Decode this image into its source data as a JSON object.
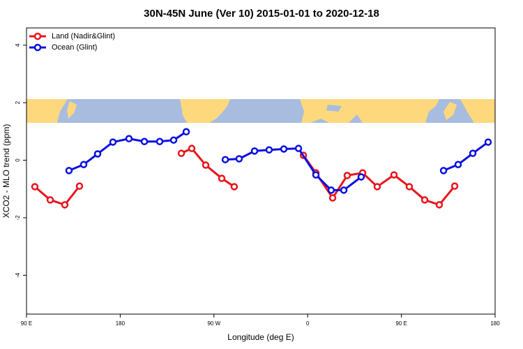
{
  "chart_data": {
    "type": "line",
    "title": "30N-45N June (Ver 10)   2015-01-01 to 2020-12-18",
    "x_label": "Longitude (deg E)",
    "y_label": "XCO2 - MLO trend (ppm)",
    "xlim": [
      90,
      540
    ],
    "xticks": [
      {
        "value": 90,
        "label": "90 E"
      },
      180,
      {
        "value": 270,
        "label": "90 W"
      },
      {
        "value": 360,
        "label": "0"
      },
      {
        "value": 450,
        "label": "90 E"
      },
      {
        "value": 540,
        "label": "180"
      }
    ],
    "ylim": [
      -5.35,
      4.6
    ],
    "yticks": [
      -4,
      -2,
      0,
      2,
      4
    ],
    "legend": "top-left",
    "series": [
      {
        "name": "Land (Nadir&Glint)",
        "color": "#e8141c",
        "x": [
          98.0,
          112.8,
          126.8,
          140.9,
          null,
          238.7,
          248.7,
          262.1,
          277.5,
          289.5,
          null,
          355.9,
          367.9,
          384.0,
          398.0,
          412.8,
          426.8,
          442.9,
          457.6,
          472.4,
          486.4,
          501.2
        ],
        "values": [
          -0.92,
          -1.38,
          -1.55,
          -0.9,
          null,
          0.24,
          0.41,
          -0.17,
          -0.63,
          -0.92,
          null,
          0.17,
          -0.44,
          -1.31,
          -0.53,
          -0.44,
          -0.92,
          -0.51,
          -0.92,
          -1.38,
          -1.55,
          -0.9
        ]
      },
      {
        "name": "Ocean (Glint)",
        "color": "#0a10e0",
        "x": [
          130.8,
          144.9,
          158.3,
          173.0,
          188.4,
          203.2,
          217.9,
          231.3,
          243.4,
          null,
          280.9,
          294.2,
          309.0,
          323.0,
          337.1,
          351.2,
          367.9,
          382.6,
          394.7,
          411.4,
          null,
          490.5,
          504.5,
          518.6,
          533.3
        ],
        "values": [
          -0.36,
          -0.15,
          0.22,
          0.63,
          0.75,
          0.65,
          0.65,
          0.7,
          0.99,
          null,
          0.02,
          0.05,
          0.32,
          0.36,
          0.39,
          0.41,
          -0.51,
          -1.04,
          -1.04,
          -0.58,
          null,
          -0.36,
          -0.15,
          0.24,
          0.63
        ]
      }
    ]
  }
}
